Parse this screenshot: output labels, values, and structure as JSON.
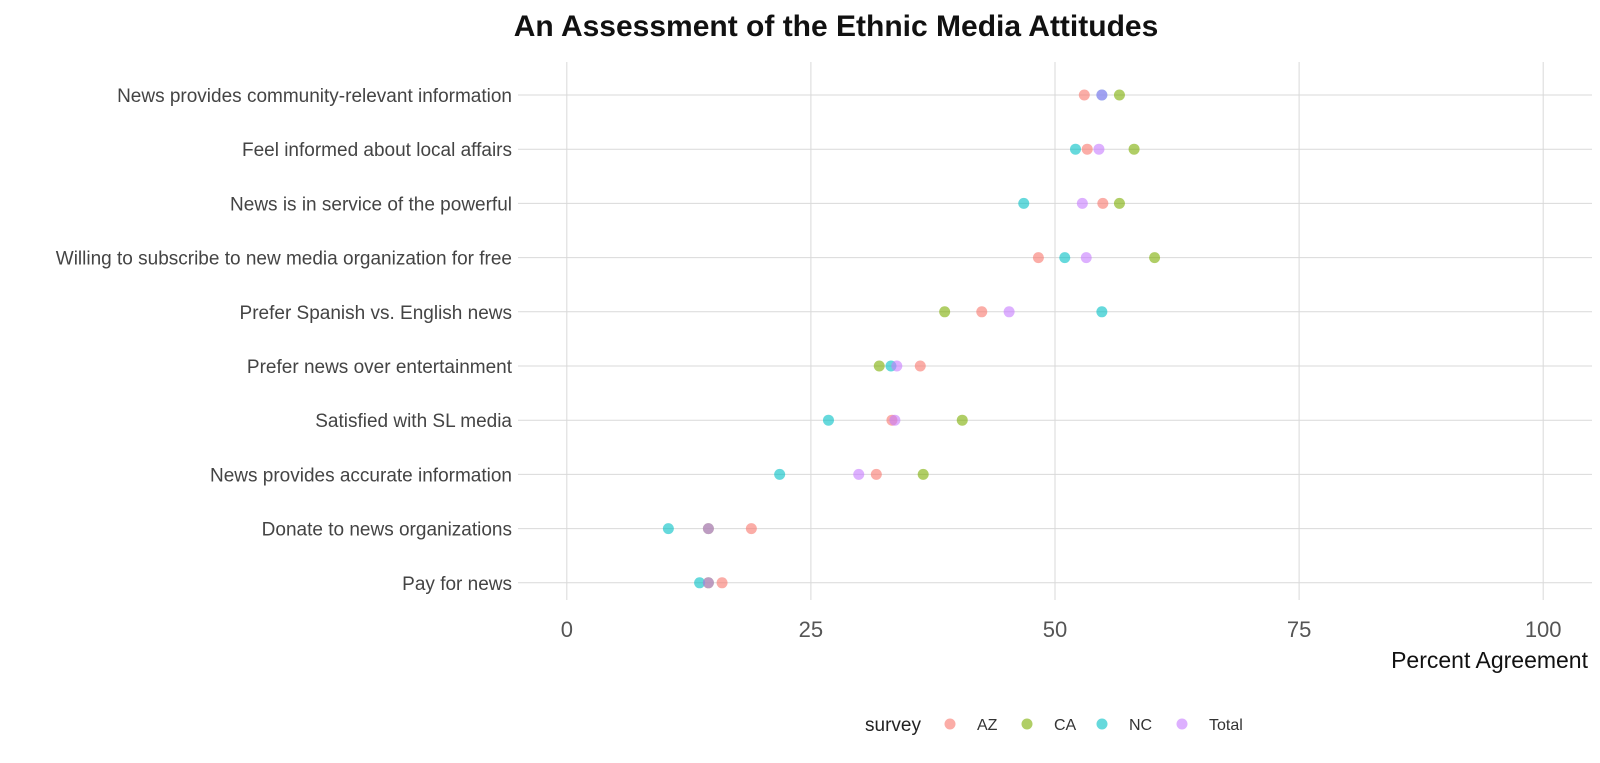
{
  "chart_data": {
    "type": "scatter",
    "title": "An Assessment of the Ethnic Media Attitudes",
    "xlabel": "Percent Agreement",
    "ylabel": "",
    "xlim": [
      -5,
      105
    ],
    "xticks": [
      0,
      25,
      50,
      75,
      100
    ],
    "grid": true,
    "legend": {
      "title": "survey",
      "position": "bottom"
    },
    "categories": [
      "News provides community-relevant information",
      "Feel informed about local affairs",
      "News is in service of the powerful",
      "Willing to subscribe to new media organization for free",
      "Prefer Spanish vs. English news",
      "Prefer news over entertainment",
      "Satisfied with SL media",
      "News provides accurate information",
      "Donate to news organizations",
      "Pay for news"
    ],
    "series": [
      {
        "name": "AZ",
        "color": "#F8766D",
        "values": [
          53.0,
          53.3,
          54.9,
          48.3,
          42.5,
          36.2,
          33.3,
          31.7,
          18.9,
          15.9
        ]
      },
      {
        "name": "CA",
        "color": "#7CAE00",
        "values": [
          56.6,
          58.1,
          56.6,
          60.2,
          38.7,
          32.0,
          40.5,
          36.5,
          14.5,
          14.5
        ]
      },
      {
        "name": "NC",
        "color": "#00BFC4",
        "values": [
          54.8,
          52.1,
          46.8,
          51.0,
          54.8,
          33.2,
          26.8,
          21.8,
          10.4,
          13.6
        ]
      },
      {
        "name": "Total",
        "color": "#C77CFF",
        "values": [
          54.8,
          54.5,
          52.8,
          53.2,
          45.3,
          33.8,
          33.6,
          29.9,
          14.5,
          14.5
        ]
      }
    ]
  }
}
